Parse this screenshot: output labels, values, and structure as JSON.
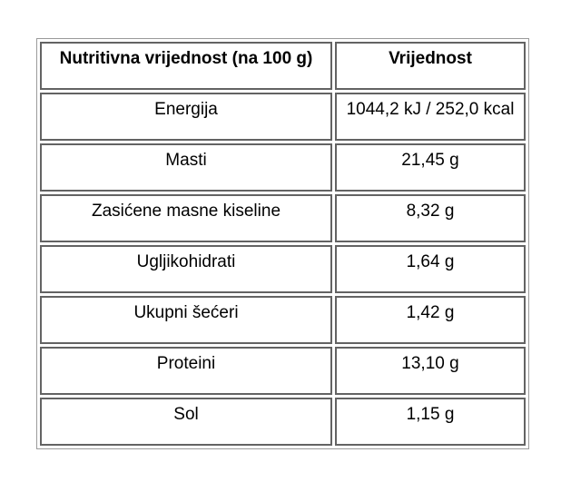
{
  "table": {
    "headers": {
      "nutrient": "Nutritivna vrijednost (na 100 g)",
      "value": "Vrijednost"
    },
    "rows": [
      {
        "nutrient": "Energija",
        "value": "1044,2 kJ / 252,0 kcal"
      },
      {
        "nutrient": "Masti",
        "value": "21,45 g"
      },
      {
        "nutrient": "Zasićene masne kiseline",
        "value": "8,32 g"
      },
      {
        "nutrient": "Ugljikohidrati",
        "value": "1,64 g"
      },
      {
        "nutrient": "Ukupni šećeri",
        "value": "1,42 g"
      },
      {
        "nutrient": "Proteini",
        "value": "13,10 g"
      },
      {
        "nutrient": "Sol",
        "value": "1,15 g"
      }
    ],
    "colors": {
      "cell_border": "#636363",
      "outer_border": "#9a9a9a",
      "text": "#000000",
      "background": "#ffffff"
    }
  }
}
